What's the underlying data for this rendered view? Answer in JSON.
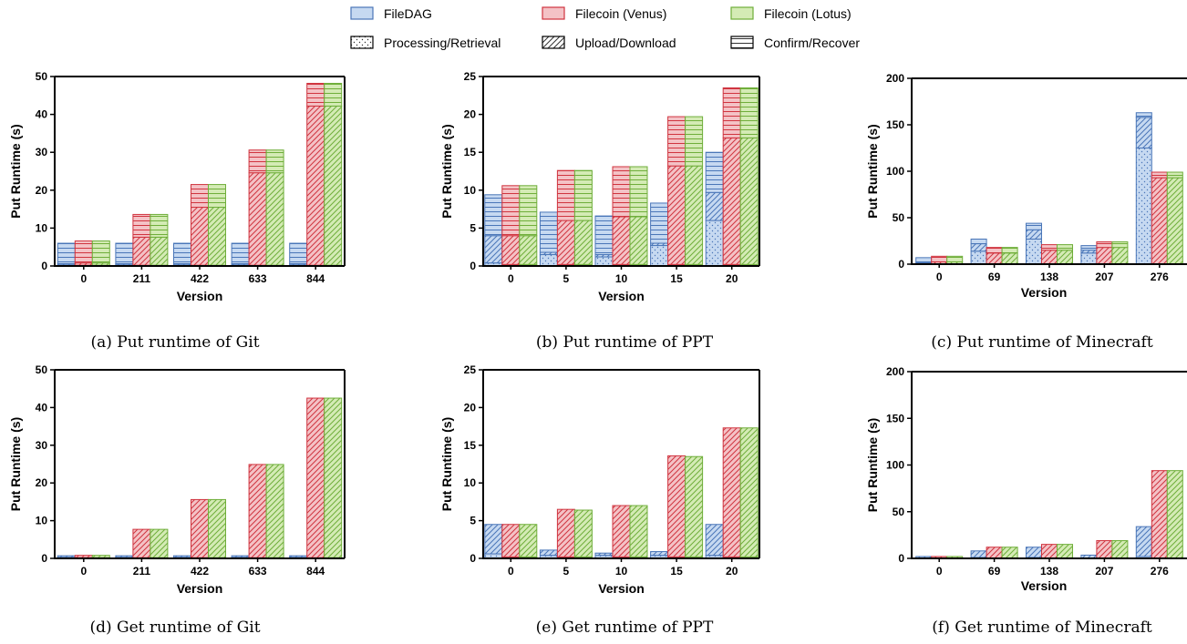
{
  "legend": {
    "systems": [
      {
        "label": "FileDAG",
        "color": "blue"
      },
      {
        "label": "Filecoin (Venus)",
        "color": "red"
      },
      {
        "label": "Filecoin (Lotus)",
        "color": "green"
      }
    ],
    "phases": [
      {
        "label": "Processing/Retrieval",
        "pattern": "dots"
      },
      {
        "label": "Upload/Download",
        "pattern": "diag"
      },
      {
        "label": "Confirm/Recover",
        "pattern": "horiz"
      }
    ]
  },
  "colors": {
    "blue": {
      "fill": "#c6d9f1",
      "ink": "#4a76b8"
    },
    "red": {
      "fill": "#f4c2c6",
      "ink": "#d0343f"
    },
    "green": {
      "fill": "#d4ebb5",
      "ink": "#6fae3a"
    }
  },
  "chart_data": [
    {
      "type": "bar",
      "stacked": true,
      "caption": "(a) Put runtime of Git",
      "ylabel": "Put Runtime (s)",
      "xlabel": "Version",
      "ylim": [
        0,
        50
      ],
      "yticks": [
        0,
        10,
        20,
        30,
        40,
        50
      ],
      "categories": [
        "0",
        "211",
        "422",
        "633",
        "844"
      ],
      "series": [
        {
          "name": "FileDAG",
          "stacks": {
            "Processing/Retrieval": [
              0.3,
              0.3,
              0.3,
              0.3,
              0.3
            ],
            "Upload/Download": [
              0.3,
              0.3,
              0.3,
              0.3,
              0.3
            ],
            "Confirm/Recover": [
              5.4,
              5.4,
              5.4,
              5.4,
              5.4
            ]
          }
        },
        {
          "name": "Filecoin (Venus)",
          "stacks": {
            "Processing/Retrieval": [
              0.2,
              0.2,
              0.2,
              0.2,
              0.2
            ],
            "Upload/Download": [
              0.6,
              7.4,
              15.3,
              24.4,
              42.0
            ],
            "Confirm/Recover": [
              5.8,
              6.0,
              6.0,
              6.0,
              6.0
            ]
          }
        },
        {
          "name": "Filecoin (Lotus)",
          "stacks": {
            "Processing/Retrieval": [
              0.2,
              0.2,
              0.2,
              0.2,
              0.2
            ],
            "Upload/Download": [
              0.6,
              7.4,
              15.3,
              24.4,
              42.0
            ],
            "Confirm/Recover": [
              5.8,
              6.0,
              6.0,
              6.0,
              6.0
            ]
          }
        }
      ]
    },
    {
      "type": "bar",
      "stacked": true,
      "caption": "(b) Put runtime of PPT",
      "ylabel": "Put Runtime (s)",
      "xlabel": "Version",
      "ylim": [
        0,
        25
      ],
      "yticks": [
        0,
        5,
        10,
        15,
        20,
        25
      ],
      "categories": [
        "0",
        "5",
        "10",
        "15",
        "20"
      ],
      "series": [
        {
          "name": "FileDAG",
          "stacks": {
            "Processing/Retrieval": [
              0.4,
              1.5,
              1.2,
              2.7,
              6.0
            ],
            "Upload/Download": [
              3.6,
              0.3,
              0.3,
              0.3,
              3.7
            ],
            "Confirm/Recover": [
              5.4,
              5.3,
              5.1,
              5.3,
              5.3
            ]
          }
        },
        {
          "name": "Filecoin (Venus)",
          "stacks": {
            "Processing/Retrieval": [
              0.2,
              0.2,
              0.2,
              0.2,
              0.2
            ],
            "Upload/Download": [
              3.8,
              5.8,
              6.3,
              13.0,
              16.7
            ],
            "Confirm/Recover": [
              6.6,
              6.6,
              6.6,
              6.5,
              6.6
            ]
          }
        },
        {
          "name": "Filecoin (Lotus)",
          "stacks": {
            "Processing/Retrieval": [
              0.2,
              0.2,
              0.2,
              0.2,
              0.2
            ],
            "Upload/Download": [
              3.8,
              5.8,
              6.3,
              13.0,
              16.7
            ],
            "Confirm/Recover": [
              6.6,
              6.6,
              6.6,
              6.5,
              6.6
            ]
          }
        }
      ]
    },
    {
      "type": "bar",
      "stacked": true,
      "caption": "(c) Put runtime of Minecraft",
      "ylabel": "Put Runtime (s)",
      "xlabel": "Version",
      "ylim": [
        0,
        200
      ],
      "yticks": [
        0,
        50,
        100,
        150,
        200
      ],
      "categories": [
        "0",
        "69",
        "138",
        "207",
        "276"
      ],
      "series": [
        {
          "name": "FileDAG",
          "stacks": {
            "Processing/Retrieval": [
              1,
              14,
              27,
              12,
              125
            ],
            "Upload/Download": [
              1,
              8,
              10,
              3,
              33
            ],
            "Confirm/Recover": [
              5,
              5,
              7,
              5,
              5
            ]
          }
        },
        {
          "name": "Filecoin (Venus)",
          "stacks": {
            "Processing/Retrieval": [
              0.5,
              0.5,
              0.5,
              0.5,
              0.5
            ],
            "Upload/Download": [
              2,
              11.5,
              14.5,
              17.5,
              92.5
            ],
            "Confirm/Recover": [
              6,
              6,
              6,
              6,
              6
            ]
          }
        },
        {
          "name": "Filecoin (Lotus)",
          "stacks": {
            "Processing/Retrieval": [
              0.5,
              0.5,
              0.5,
              0.5,
              0.5
            ],
            "Upload/Download": [
              2,
              11.5,
              14.5,
              17.5,
              92.5
            ],
            "Confirm/Recover": [
              6,
              6,
              6,
              6,
              6
            ]
          }
        }
      ]
    },
    {
      "type": "bar",
      "stacked": true,
      "caption": "(d) Get runtime of Git",
      "ylabel": "Put Runtime (s)",
      "xlabel": "Version",
      "ylim": [
        0,
        50
      ],
      "yticks": [
        0,
        10,
        20,
        30,
        40,
        50
      ],
      "categories": [
        "0",
        "211",
        "422",
        "633",
        "844"
      ],
      "series": [
        {
          "name": "FileDAG",
          "stacks": {
            "Processing/Retrieval": [
              0.3,
              0.3,
              0.3,
              0.3,
              0.3
            ],
            "Upload/Download": [
              0.4,
              0.4,
              0.4,
              0.4,
              0.4
            ]
          }
        },
        {
          "name": "Filecoin (Venus)",
          "stacks": {
            "Processing/Retrieval": [
              0.2,
              0.2,
              0.2,
              0.2,
              0.2
            ],
            "Upload/Download": [
              0.6,
              7.5,
              15.4,
              24.7,
              42.3
            ]
          }
        },
        {
          "name": "Filecoin (Lotus)",
          "stacks": {
            "Processing/Retrieval": [
              0.2,
              0.2,
              0.2,
              0.2,
              0.2
            ],
            "Upload/Download": [
              0.6,
              7.5,
              15.4,
              24.7,
              42.3
            ]
          }
        }
      ]
    },
    {
      "type": "bar",
      "stacked": true,
      "caption": "(e) Get runtime of PPT",
      "ylabel": "Put Runtime (s)",
      "xlabel": "Version",
      "ylim": [
        0,
        25
      ],
      "yticks": [
        0,
        5,
        10,
        15,
        20,
        25
      ],
      "categories": [
        "0",
        "5",
        "10",
        "15",
        "20"
      ],
      "series": [
        {
          "name": "FileDAG",
          "stacks": {
            "Processing/Retrieval": [
              0.6,
              0.4,
              0.4,
              0.4,
              0.4
            ],
            "Upload/Download": [
              3.9,
              0.7,
              0.3,
              0.5,
              4.1
            ]
          }
        },
        {
          "name": "Filecoin (Venus)",
          "stacks": {
            "Processing/Retrieval": [
              0.2,
              0.2,
              0.2,
              0.2,
              0.2
            ],
            "Upload/Download": [
              4.3,
              6.3,
              6.8,
              13.4,
              17.1
            ]
          }
        },
        {
          "name": "Filecoin (Lotus)",
          "stacks": {
            "Processing/Retrieval": [
              0.2,
              0.2,
              0.2,
              0.2,
              0.2
            ],
            "Upload/Download": [
              4.3,
              6.2,
              6.8,
              13.3,
              17.1
            ]
          }
        }
      ]
    },
    {
      "type": "bar",
      "stacked": true,
      "caption": "(f) Get runtime of Minecraft",
      "ylabel": "Put Runtime (s)",
      "xlabel": "Version",
      "ylim": [
        0,
        200
      ],
      "yticks": [
        0,
        50,
        100,
        150,
        200
      ],
      "categories": [
        "0",
        "69",
        "138",
        "207",
        "276"
      ],
      "series": [
        {
          "name": "FileDAG",
          "stacks": {
            "Processing/Retrieval": [
              0.5,
              1,
              1,
              0.5,
              2
            ],
            "Upload/Download": [
              1.5,
              7,
              11,
              3,
              32
            ]
          }
        },
        {
          "name": "Filecoin (Venus)",
          "stacks": {
            "Processing/Retrieval": [
              0.5,
              0.5,
              0.5,
              0.5,
              0.5
            ],
            "Upload/Download": [
              1.5,
              11.5,
              14.5,
              18.5,
              93.5
            ]
          }
        },
        {
          "name": "Filecoin (Lotus)",
          "stacks": {
            "Processing/Retrieval": [
              0.5,
              0.5,
              0.5,
              0.5,
              0.5
            ],
            "Upload/Download": [
              1.5,
              11.5,
              14.5,
              18.5,
              93.5
            ]
          }
        }
      ]
    }
  ]
}
